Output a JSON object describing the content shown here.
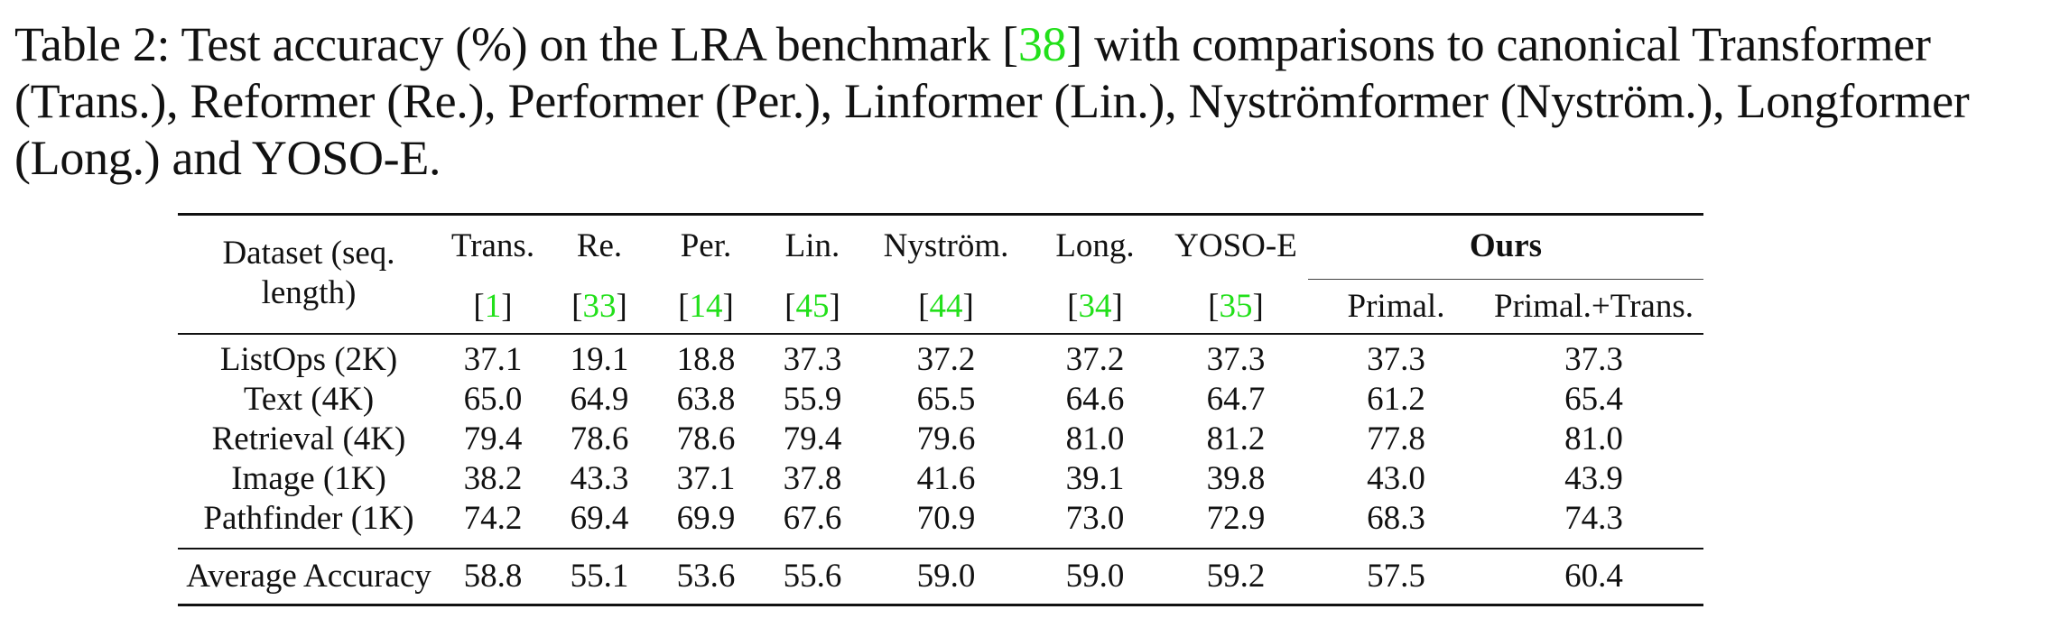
{
  "caption": {
    "part1": "Table 2: Test accuracy (%) on the LRA benchmark [",
    "cite": "38",
    "part2": "] with comparisons to canonical Transformer (Trans.), Reformer (Re.), Performer (Per.), Linformer (Lin.), Nyströmformer (Nyström.), Longformer (Long.) and YOSO-E."
  },
  "table": {
    "dataset_header": "Dataset (seq. length)",
    "ours_header": "Ours",
    "methods": [
      {
        "name": "Trans.",
        "cite": "1"
      },
      {
        "name": "Re.",
        "cite": "33"
      },
      {
        "name": "Per.",
        "cite": "14"
      },
      {
        "name": "Lin.",
        "cite": "45"
      },
      {
        "name": "Nyström.",
        "cite": "44"
      },
      {
        "name": "Long.",
        "cite": "34"
      },
      {
        "name": "YOSO-E",
        "cite": "35"
      }
    ],
    "ours_columns": [
      "Primal.",
      "Primal.+Trans."
    ],
    "rows": [
      {
        "dataset": "ListOps (2K)",
        "values": [
          "37.1",
          "19.1",
          "18.8",
          "37.3",
          "37.2",
          "37.2",
          "37.3",
          "37.3",
          "37.3"
        ]
      },
      {
        "dataset": "Text (4K)",
        "values": [
          "65.0",
          "64.9",
          "63.8",
          "55.9",
          "65.5",
          "64.6",
          "64.7",
          "61.2",
          "65.4"
        ]
      },
      {
        "dataset": "Retrieval (4K)",
        "values": [
          "79.4",
          "78.6",
          "78.6",
          "79.4",
          "79.6",
          "81.0",
          "81.2",
          "77.8",
          "81.0"
        ]
      },
      {
        "dataset": "Image (1K)",
        "values": [
          "38.2",
          "43.3",
          "37.1",
          "37.8",
          "41.6",
          "39.1",
          "39.8",
          "43.0",
          "43.9"
        ]
      },
      {
        "dataset": "Pathfinder (1K)",
        "values": [
          "74.2",
          "69.4",
          "69.9",
          "67.6",
          "70.9",
          "73.0",
          "72.9",
          "68.3",
          "74.3"
        ]
      }
    ],
    "average": {
      "label": "Average Accuracy",
      "values": [
        "58.8",
        "55.1",
        "53.6",
        "55.6",
        "59.0",
        "59.0",
        "59.2",
        "57.5",
        "60.4"
      ]
    }
  }
}
